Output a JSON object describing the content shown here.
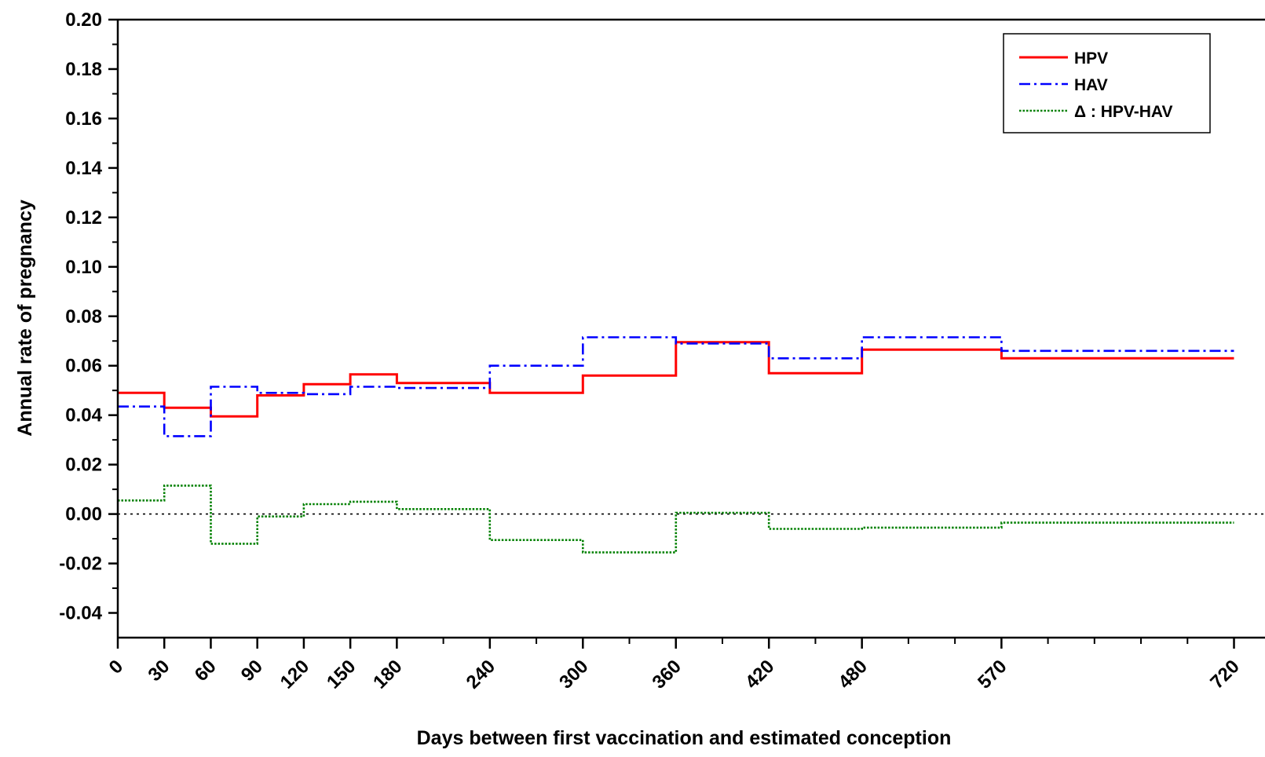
{
  "chart_data": {
    "type": "line",
    "step": true,
    "title": "",
    "xlabel": "Days between first vaccination and estimated conception",
    "ylabel": "Annual rate of pregnancy",
    "ylim": [
      -0.05,
      0.2
    ],
    "xlim": [
      0,
      740
    ],
    "y_tick_labels": [
      "0.20",
      "0.18",
      "0.16",
      "0.14",
      "0.12",
      "0.10",
      "0.08",
      "0.06",
      "0.04",
      "0.02",
      "0.00",
      "-0.02",
      "-0.04"
    ],
    "y_ticks": [
      0.2,
      0.18,
      0.16,
      0.14,
      0.12,
      0.1,
      0.08,
      0.06,
      0.04,
      0.02,
      0.0,
      -0.02,
      -0.04
    ],
    "x_ticks": [
      0,
      30,
      60,
      90,
      120,
      150,
      180,
      240,
      300,
      360,
      420,
      480,
      570,
      720
    ],
    "x_tick_labels": [
      "0",
      "30",
      "60",
      "90",
      "120",
      "150",
      "180",
      "240",
      "300",
      "360",
      "420",
      "480",
      "570",
      "720"
    ],
    "x_minor_ticks": [
      210,
      270,
      330,
      390,
      450,
      510,
      540,
      600,
      630,
      660,
      690
    ],
    "bin_edges": [
      0,
      30,
      60,
      90,
      120,
      150,
      180,
      240,
      300,
      360,
      420,
      480,
      570,
      720
    ],
    "reference_line": {
      "y": 0.0,
      "style": "dotted"
    },
    "legend_position": "top-right",
    "series": [
      {
        "name": "HPV",
        "style": "solid",
        "color": "#ff0000",
        "values": [
          0.049,
          0.043,
          0.0395,
          0.048,
          0.0525,
          0.0565,
          0.053,
          0.049,
          0.056,
          0.0695,
          0.057,
          0.0665,
          0.063
        ]
      },
      {
        "name": "HAV",
        "style": "dash-dot",
        "color": "#0000ff",
        "values": [
          0.0435,
          0.0315,
          0.0515,
          0.049,
          0.0485,
          0.0515,
          0.051,
          0.06,
          0.0715,
          0.069,
          0.063,
          0.0715,
          0.066
        ]
      },
      {
        "name": "Δ : HPV-HAV",
        "style": "dotted",
        "color": "#008000",
        "values": [
          0.0055,
          0.0115,
          -0.012,
          -0.001,
          0.004,
          0.005,
          0.002,
          -0.0105,
          -0.0155,
          0.0005,
          -0.006,
          -0.0055,
          -0.0035
        ]
      }
    ]
  }
}
